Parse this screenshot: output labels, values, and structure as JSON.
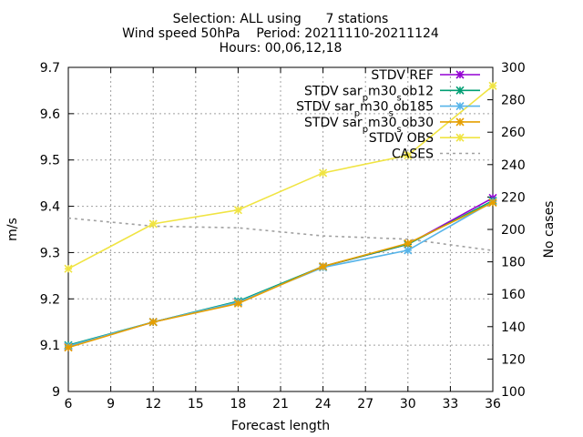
{
  "chart_data": {
    "type": "line",
    "title_lines": [
      "Selection: ALL using      7 stations",
      "Wind speed 50hPa    Period: 20211110-20211124",
      "Hours: 00,06,12,18"
    ],
    "xlabel": "Forecast length",
    "ylabel": "m/s",
    "y2label": "No cases",
    "xlim": [
      6,
      36
    ],
    "ylim": [
      9.0,
      9.7
    ],
    "y2lim": [
      100,
      300
    ],
    "xticks": [
      6,
      9,
      12,
      15,
      18,
      21,
      24,
      27,
      30,
      33,
      36
    ],
    "yticks": [
      "9",
      "9.1",
      "9.2",
      "9.3",
      "9.4",
      "9.5",
      "9.6",
      "9.7"
    ],
    "yticks_values": [
      9.0,
      9.1,
      9.2,
      9.3,
      9.4,
      9.5,
      9.6,
      9.7
    ],
    "y2ticks": [
      100,
      120,
      140,
      160,
      180,
      200,
      220,
      240,
      260,
      280,
      300
    ],
    "grid": true,
    "legend_position": "top-right",
    "x": [
      6,
      12,
      18,
      24,
      30,
      36
    ],
    "series": [
      {
        "name": "STDV REF",
        "legend_main": "STDV REF",
        "legend_sub": "",
        "legend_tail": "",
        "color": "#9400d3",
        "axis": "y1",
        "values": [
          9.097,
          9.15,
          9.193,
          9.27,
          9.318,
          9.418
        ]
      },
      {
        "name": "STDV sar_m30_sob12",
        "legend_main": "STDV sar",
        "legend_sub": "p",
        "legend_tail": "m30",
        "legend_sub2": "s",
        "legend_tail2": "ob12",
        "color": "#009e73",
        "axis": "y1",
        "values": [
          9.1,
          9.15,
          9.195,
          9.27,
          9.318,
          9.412
        ]
      },
      {
        "name": "STDV sar_m30_sob185",
        "legend_main": "STDV sar",
        "legend_sub": "p",
        "legend_tail": "m30",
        "legend_sub2": "s",
        "legend_tail2": "ob185",
        "color": "#56b4e9",
        "axis": "y1",
        "values": [
          9.098,
          9.15,
          9.193,
          9.268,
          9.305,
          9.41
        ]
      },
      {
        "name": "STDV sar_m30_sob30",
        "legend_main": "STDV sar",
        "legend_sub": "p",
        "legend_tail": "m30",
        "legend_sub2": "s",
        "legend_tail2": "ob30",
        "color": "#e69f00",
        "axis": "y1",
        "values": [
          9.095,
          9.15,
          9.19,
          9.27,
          9.32,
          9.408
        ]
      },
      {
        "name": "STDV OBS",
        "legend_main": "STDV OBS",
        "legend_sub": "",
        "legend_tail": "",
        "color": "#f0e442",
        "axis": "y1",
        "values": [
          9.265,
          9.362,
          9.392,
          9.472,
          9.51,
          9.66
        ]
      },
      {
        "name": "CASES",
        "legend_main": "CASES",
        "legend_sub": "",
        "legend_tail": "",
        "color": "#a0a0a0",
        "axis": "y2",
        "dashed": true,
        "values": [
          207,
          202,
          201,
          196,
          194,
          187
        ]
      }
    ]
  }
}
